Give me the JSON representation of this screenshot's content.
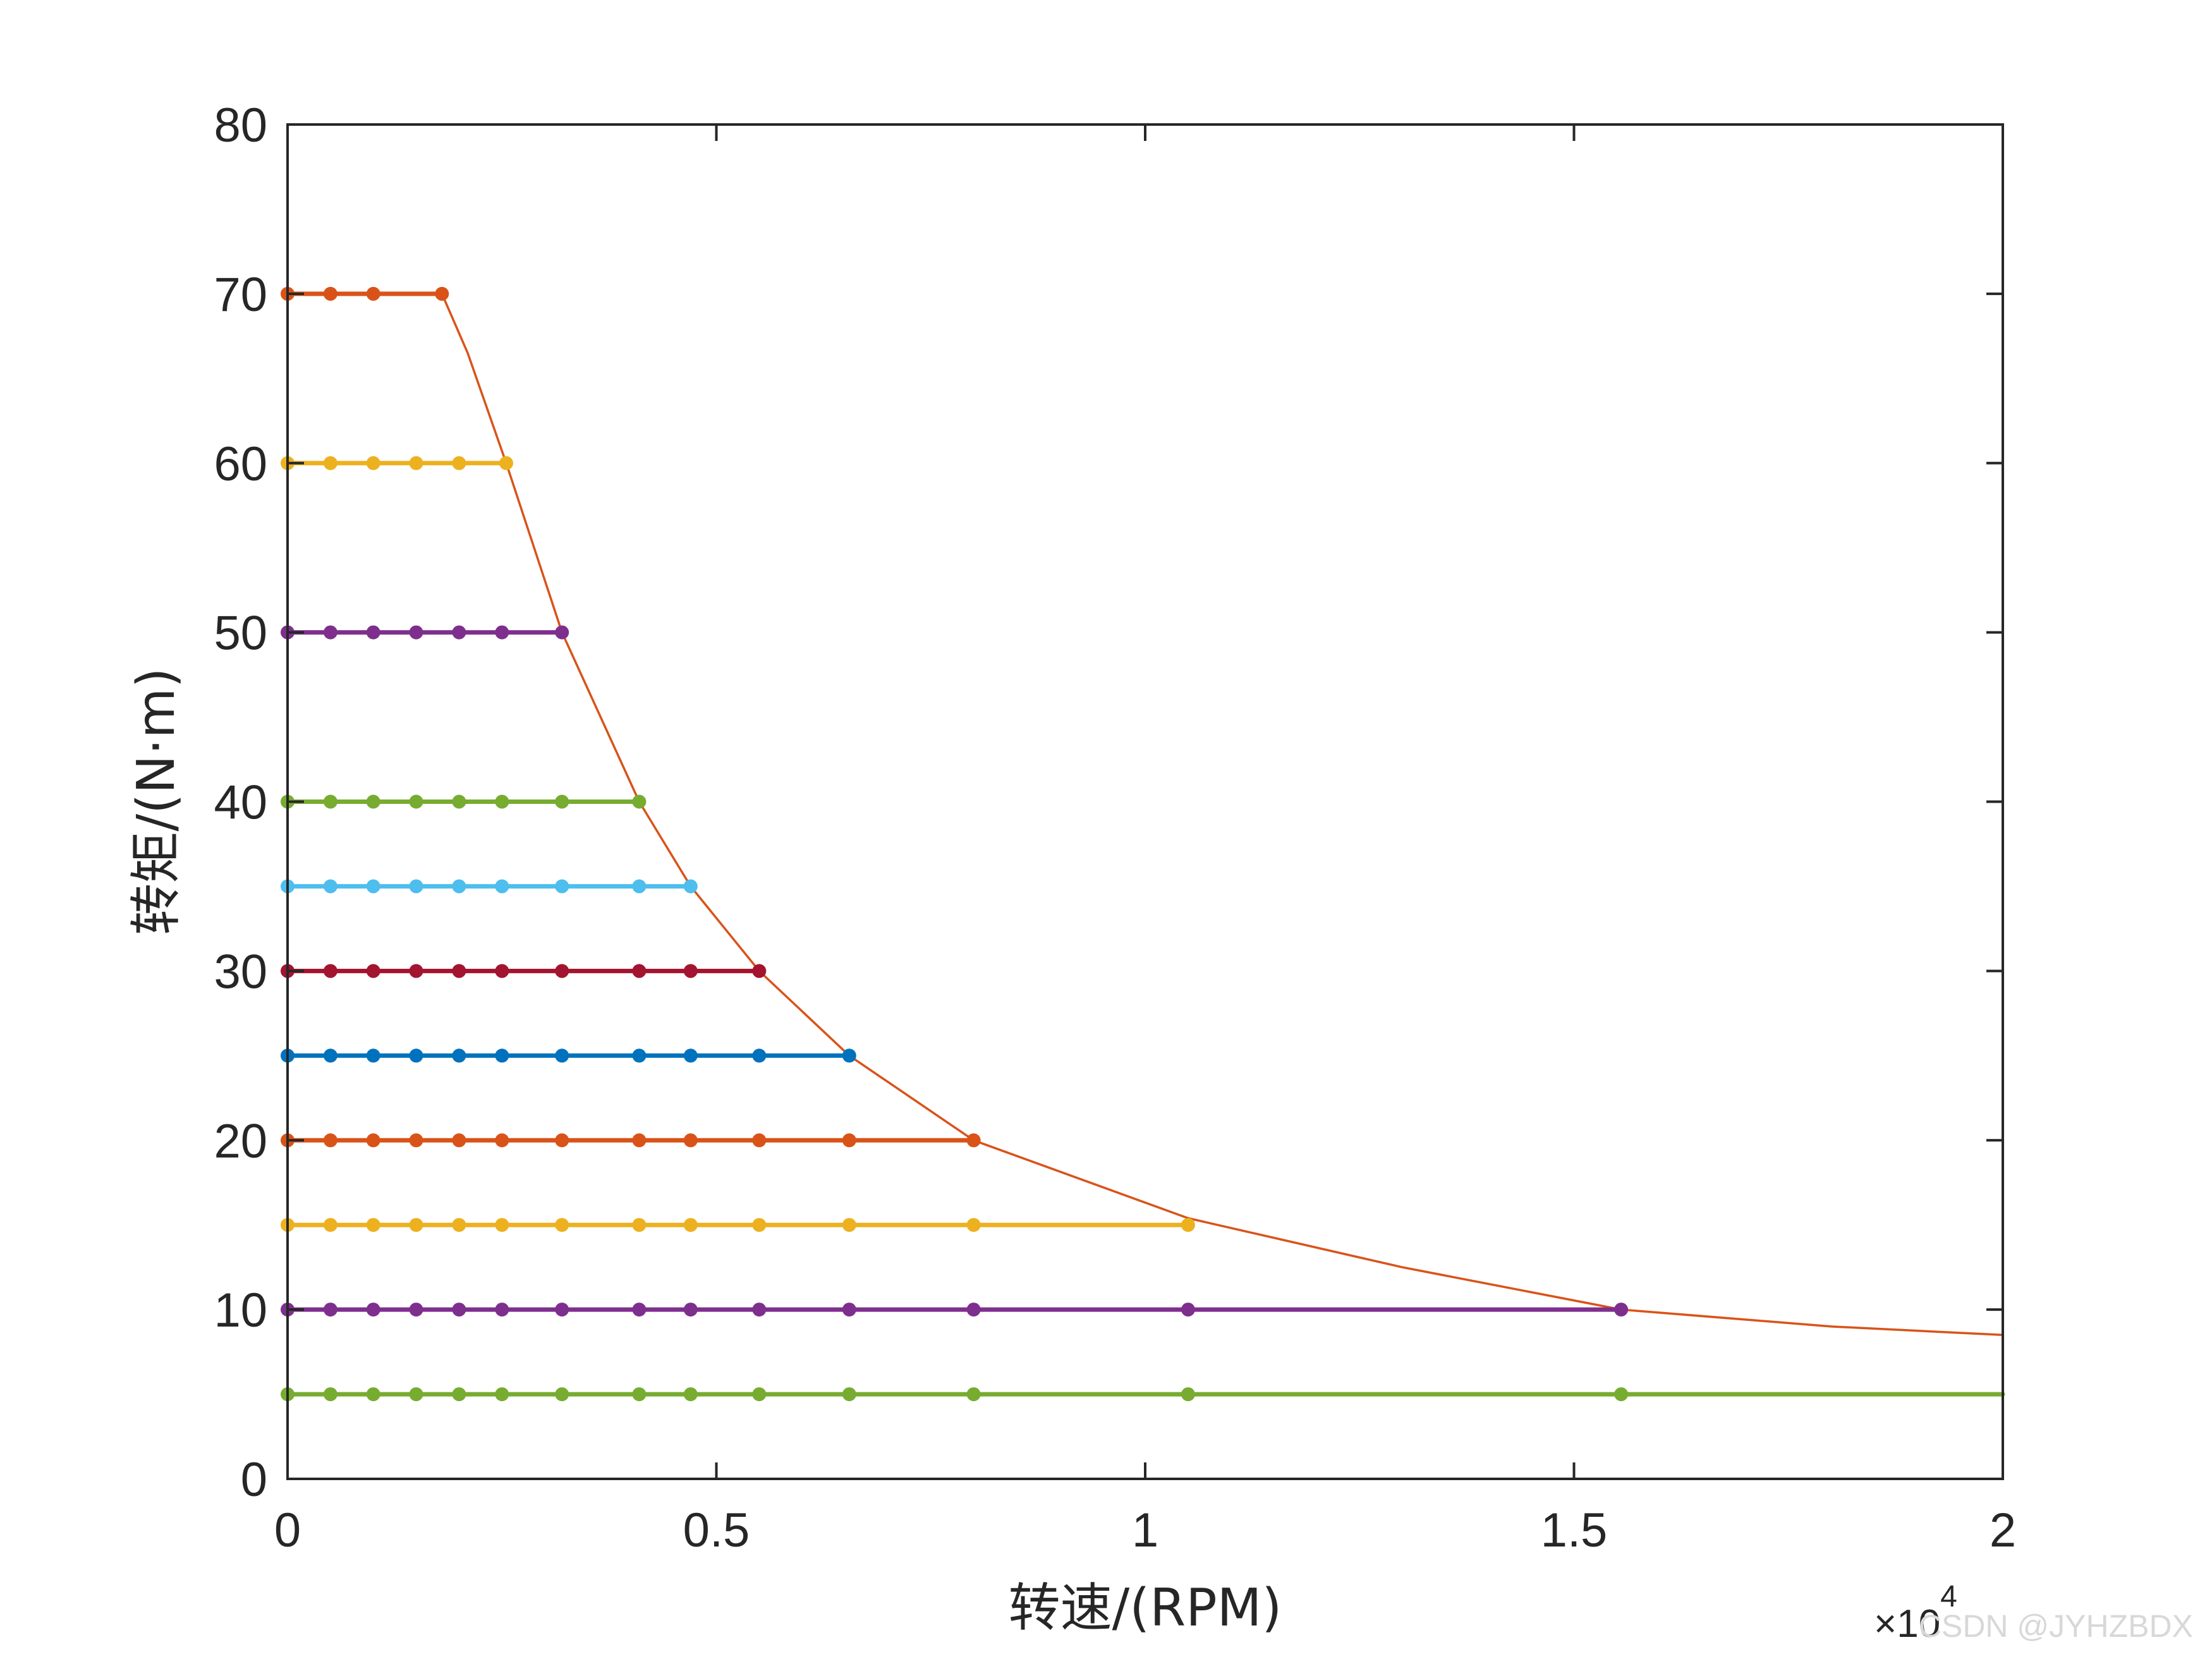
{
  "chart_data": {
    "type": "line",
    "xlabel": "转速/(RPM)",
    "ylabel": "转矩/(N·m)",
    "x_exponent_label": "×10",
    "x_exponent_power": "4",
    "x_scale": 10000,
    "xlim": [
      0,
      2
    ],
    "ylim": [
      0,
      80
    ],
    "xticks": [
      "0",
      "0.5",
      "1",
      "1.5",
      "2"
    ],
    "yticks": [
      "0",
      "10",
      "20",
      "30",
      "40",
      "50",
      "60",
      "70",
      "80"
    ],
    "grid": false,
    "speed_points": [
      0,
      0.05,
      0.1,
      0.15,
      0.2,
      0.25,
      0.32,
      0.41,
      0.47,
      0.55,
      0.655,
      0.8,
      1.05,
      1.555
    ],
    "series": [
      {
        "torque": 70,
        "color": "#D95319",
        "values": [
          [
            0,
            70
          ],
          [
            0.05,
            70
          ],
          [
            0.1,
            70
          ],
          [
            0.18,
            70
          ]
        ]
      },
      {
        "torque": 60,
        "color": "#EDB120",
        "values": [
          [
            0,
            60
          ],
          [
            0.05,
            60
          ],
          [
            0.1,
            60
          ],
          [
            0.15,
            60
          ],
          [
            0.2,
            60
          ],
          [
            0.255,
            60
          ]
        ]
      },
      {
        "torque": 50,
        "color": "#7E2F8E",
        "values": [
          [
            0,
            50
          ],
          [
            0.05,
            50
          ],
          [
            0.1,
            50
          ],
          [
            0.15,
            50
          ],
          [
            0.2,
            50
          ],
          [
            0.25,
            50
          ],
          [
            0.32,
            50
          ]
        ]
      },
      {
        "torque": 40,
        "color": "#77AC30",
        "values": [
          [
            0,
            40
          ],
          [
            0.05,
            40
          ],
          [
            0.1,
            40
          ],
          [
            0.15,
            40
          ],
          [
            0.2,
            40
          ],
          [
            0.25,
            40
          ],
          [
            0.32,
            40
          ],
          [
            0.41,
            40
          ]
        ]
      },
      {
        "torque": 35,
        "color": "#4DBEEE",
        "values": [
          [
            0,
            35
          ],
          [
            0.05,
            35
          ],
          [
            0.1,
            35
          ],
          [
            0.15,
            35
          ],
          [
            0.2,
            35
          ],
          [
            0.25,
            35
          ],
          [
            0.32,
            35
          ],
          [
            0.41,
            35
          ],
          [
            0.47,
            35
          ]
        ]
      },
      {
        "torque": 30,
        "color": "#A2142F",
        "values": [
          [
            0,
            30
          ],
          [
            0.05,
            30
          ],
          [
            0.1,
            30
          ],
          [
            0.15,
            30
          ],
          [
            0.2,
            30
          ],
          [
            0.25,
            30
          ],
          [
            0.32,
            30
          ],
          [
            0.41,
            30
          ],
          [
            0.47,
            30
          ],
          [
            0.55,
            30
          ]
        ]
      },
      {
        "torque": 25,
        "color": "#0072BD",
        "values": [
          [
            0,
            25
          ],
          [
            0.05,
            25
          ],
          [
            0.1,
            25
          ],
          [
            0.15,
            25
          ],
          [
            0.2,
            25
          ],
          [
            0.25,
            25
          ],
          [
            0.32,
            25
          ],
          [
            0.41,
            25
          ],
          [
            0.47,
            25
          ],
          [
            0.55,
            25
          ],
          [
            0.655,
            25
          ]
        ]
      },
      {
        "torque": 20,
        "color": "#D95319",
        "values": [
          [
            0,
            20
          ],
          [
            0.05,
            20
          ],
          [
            0.1,
            20
          ],
          [
            0.15,
            20
          ],
          [
            0.2,
            20
          ],
          [
            0.25,
            20
          ],
          [
            0.32,
            20
          ],
          [
            0.41,
            20
          ],
          [
            0.47,
            20
          ],
          [
            0.55,
            20
          ],
          [
            0.655,
            20
          ],
          [
            0.8,
            20
          ]
        ]
      },
      {
        "torque": 15,
        "color": "#EDB120",
        "values": [
          [
            0,
            15
          ],
          [
            0.05,
            15
          ],
          [
            0.1,
            15
          ],
          [
            0.15,
            15
          ],
          [
            0.2,
            15
          ],
          [
            0.25,
            15
          ],
          [
            0.32,
            15
          ],
          [
            0.41,
            15
          ],
          [
            0.47,
            15
          ],
          [
            0.55,
            15
          ],
          [
            0.655,
            15
          ],
          [
            0.8,
            15
          ],
          [
            1.05,
            15
          ]
        ]
      },
      {
        "torque": 10,
        "color": "#7E2F8E",
        "values": [
          [
            0,
            10
          ],
          [
            0.05,
            10
          ],
          [
            0.1,
            10
          ],
          [
            0.15,
            10
          ],
          [
            0.2,
            10
          ],
          [
            0.25,
            10
          ],
          [
            0.32,
            10
          ],
          [
            0.41,
            10
          ],
          [
            0.47,
            10
          ],
          [
            0.55,
            10
          ],
          [
            0.655,
            10
          ],
          [
            0.8,
            10
          ],
          [
            1.05,
            10
          ],
          [
            1.555,
            10
          ]
        ]
      },
      {
        "torque": 5,
        "color": "#77AC30",
        "values": [
          [
            0,
            5
          ],
          [
            0.05,
            5
          ],
          [
            0.1,
            5
          ],
          [
            0.15,
            5
          ],
          [
            0.2,
            5
          ],
          [
            0.25,
            5
          ],
          [
            0.32,
            5
          ],
          [
            0.41,
            5
          ],
          [
            0.47,
            5
          ],
          [
            0.55,
            5
          ],
          [
            0.655,
            5
          ],
          [
            0.8,
            5
          ],
          [
            1.05,
            5
          ],
          [
            1.555,
            5
          ],
          [
            2,
            5
          ]
        ]
      }
    ],
    "envelope_curve": {
      "color": "#D95319",
      "values": [
        [
          0.18,
          70
        ],
        [
          0.21,
          66.5
        ],
        [
          0.255,
          60
        ],
        [
          0.32,
          50
        ],
        [
          0.41,
          40
        ],
        [
          0.47,
          35
        ],
        [
          0.55,
          30
        ],
        [
          0.655,
          25
        ],
        [
          0.8,
          20
        ],
        [
          1.05,
          15.4
        ],
        [
          1.3,
          12.5
        ],
        [
          1.555,
          10
        ],
        [
          1.8,
          9
        ],
        [
          2,
          8.5
        ]
      ]
    }
  },
  "watermark": "CSDN @JYHZBDX"
}
